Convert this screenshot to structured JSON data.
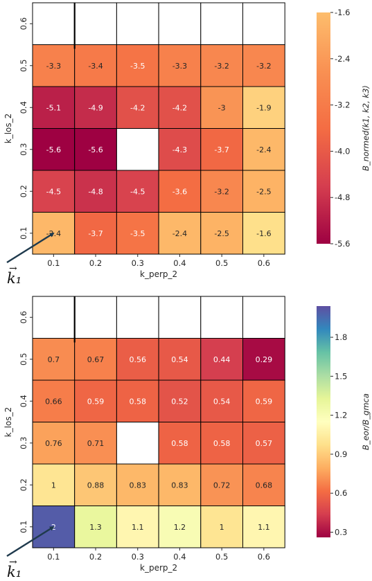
{
  "chart_data": [
    {
      "type": "heatmap",
      "xlabel": "k_perp_2",
      "ylabel": "k_los_2",
      "x_ticks": [
        "0.1",
        "0.2",
        "0.3",
        "0.4",
        "0.5",
        "0.6"
      ],
      "y_ticks": [
        "0.1",
        "0.2",
        "0.3",
        "0.4",
        "0.5",
        "0.6"
      ],
      "values": [
        [
          -2.4,
          -3.7,
          -3.5,
          -2.4,
          -2.5,
          -1.6
        ],
        [
          -4.5,
          -4.8,
          -4.5,
          -3.6,
          -3.2,
          -2.5
        ],
        [
          -5.6,
          -5.6,
          null,
          -4.3,
          -3.7,
          -2.4
        ],
        [
          -5.1,
          -4.9,
          -4.2,
          -4.2,
          -3,
          -1.9
        ],
        [
          -3.3,
          -3.4,
          -3.5,
          -3.3,
          -3.2,
          -3.2
        ],
        [
          null,
          null,
          null,
          null,
          null,
          null
        ]
      ],
      "cell_labels": [
        [
          "-2.4",
          "-3.7",
          "-3.5",
          "-2.4",
          "-2.5",
          "-1.6"
        ],
        [
          "-4.5",
          "-4.8",
          "-4.5",
          "-3.6",
          "-3.2",
          "-2.5"
        ],
        [
          "-5.6",
          "-5.6",
          "",
          "-4.3",
          "-3.7",
          "-2.4"
        ],
        [
          "-5.1",
          "-4.9",
          "-4.2",
          "-4.2",
          "-3",
          "-1.9"
        ],
        [
          "-3.3",
          "-3.4",
          "-3.5",
          "-3.3",
          "-3.2",
          "-3.2"
        ],
        [
          "",
          "",
          "",
          "",
          "",
          ""
        ]
      ],
      "colorbar": {
        "label": "B_normed(k1, k2, k3)",
        "label_main": "B",
        "label_sub": "normed",
        "label_args": "(k",
        "ticks": [
          -1.6,
          -2.4,
          -3.2,
          -4.0,
          -4.8,
          -5.6
        ],
        "tick_labels": [
          "-1.6",
          "-2.4",
          "-3.2",
          "-4.0",
          "-4.8",
          "-5.6"
        ],
        "range": [
          -5.6,
          -1.6
        ]
      },
      "colormap": "Spectral",
      "annotation": "k₁",
      "annotation_arrow_color": "#1f3a4d"
    },
    {
      "type": "heatmap",
      "xlabel": "k_perp_2",
      "ylabel": "k_los_2",
      "x_ticks": [
        "0.1",
        "0.2",
        "0.3",
        "0.4",
        "0.5",
        "0.6"
      ],
      "y_ticks": [
        "0.1",
        "0.2",
        "0.3",
        "0.4",
        "0.5",
        "0.6"
      ],
      "values": [
        [
          2,
          1.3,
          1.1,
          1.2,
          1,
          1.1
        ],
        [
          1,
          0.88,
          0.83,
          0.83,
          0.72,
          0.68
        ],
        [
          0.76,
          0.71,
          null,
          0.58,
          0.58,
          0.57
        ],
        [
          0.66,
          0.59,
          0.58,
          0.52,
          0.54,
          0.59
        ],
        [
          0.7,
          0.67,
          0.56,
          0.54,
          0.44,
          0.29
        ],
        [
          null,
          null,
          null,
          null,
          null,
          null
        ]
      ],
      "cell_labels": [
        [
          "2",
          "1.3",
          "1.1",
          "1.2",
          "1",
          "1.1"
        ],
        [
          "1",
          "0.88",
          "0.83",
          "0.83",
          "0.72",
          "0.68"
        ],
        [
          "0.76",
          "0.71",
          "",
          "0.58",
          "0.58",
          "0.57"
        ],
        [
          "0.66",
          "0.59",
          "0.58",
          "0.52",
          "0.54",
          "0.59"
        ],
        [
          "0.7",
          "0.67",
          "0.56",
          "0.54",
          "0.44",
          "0.29"
        ],
        [
          "",
          "",
          "",
          "",
          "",
          ""
        ]
      ],
      "colorbar": {
        "label": "B_eor/B_gmca",
        "ticks": [
          1.8,
          1.5,
          1.2,
          0.9,
          0.6,
          0.3
        ],
        "tick_labels": [
          "1.8",
          "1.5",
          "1.2",
          "0.9",
          "0.6",
          "0.3"
        ],
        "range": [
          0.26,
          2.04
        ]
      },
      "colormap": "Spectral",
      "annotation": "k₁",
      "annotation_arrow_color": "#1f3a4d"
    }
  ]
}
